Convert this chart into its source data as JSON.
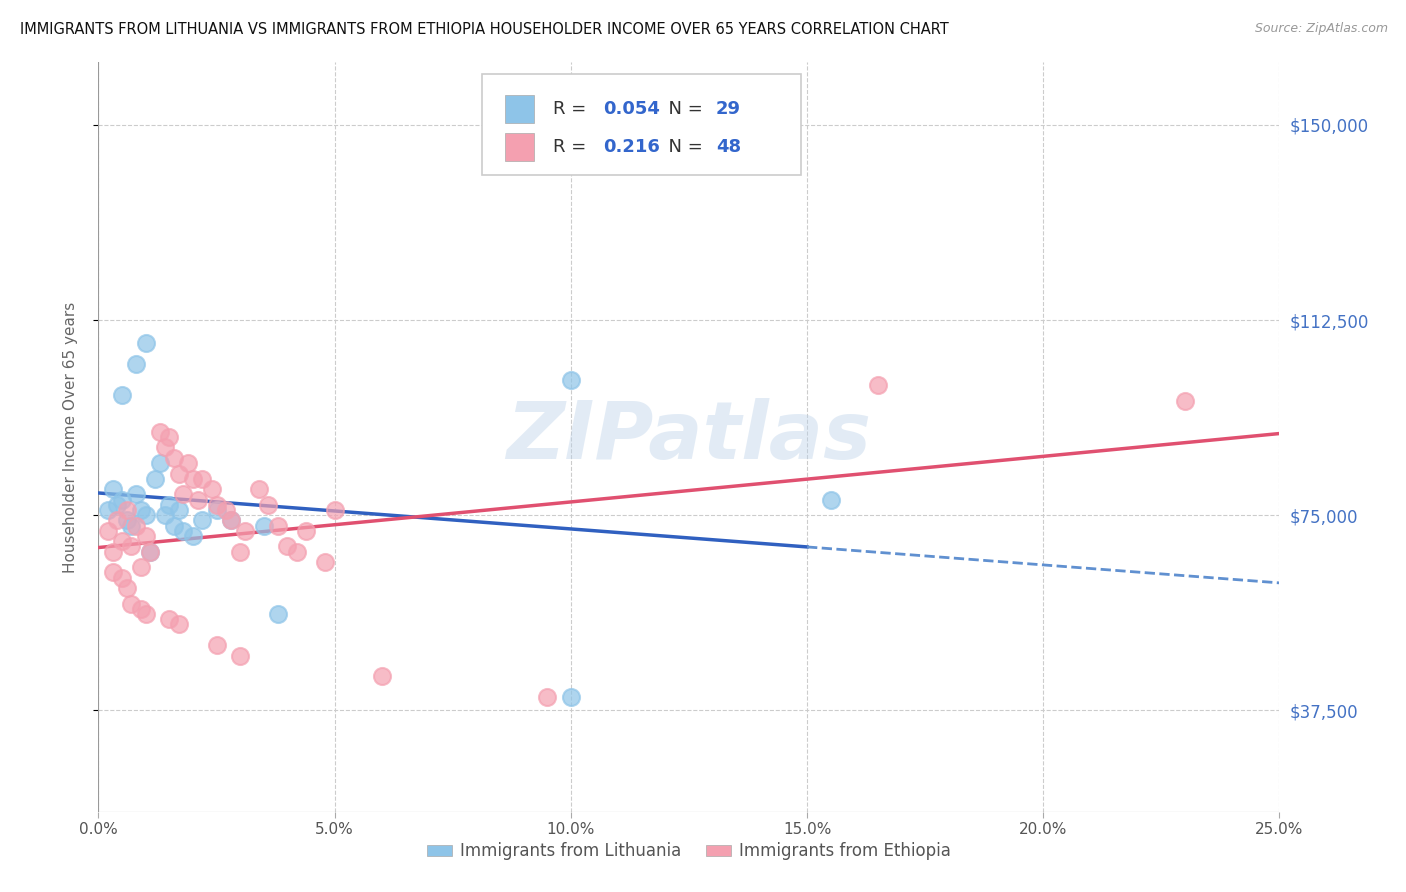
{
  "title": "IMMIGRANTS FROM LITHUANIA VS IMMIGRANTS FROM ETHIOPIA HOUSEHOLDER INCOME OVER 65 YEARS CORRELATION CHART",
  "source": "Source: ZipAtlas.com",
  "ylabel": "Householder Income Over 65 years",
  "yticks": [
    37500,
    75000,
    112500,
    150000
  ],
  "ytick_labels": [
    "$37,500",
    "$75,000",
    "$112,500",
    "$150,000"
  ],
  "xmin": 0.0,
  "xmax": 0.25,
  "ymin": 18000,
  "ymax": 162000,
  "R_lithuania": 0.054,
  "N_lithuania": 29,
  "R_ethiopia": 0.216,
  "N_ethiopia": 48,
  "color_lithuania": "#8ec4e8",
  "color_ethiopia": "#f4a0b0",
  "trend_lithuania_solid_color": "#3060c0",
  "trend_lithuania_dash_color": "#6090d0",
  "trend_ethiopia_color": "#e05070",
  "watermark": "ZIPatlas",
  "lith_trend_solid_end": 0.15,
  "lithuania_points": [
    [
      0.002,
      76000
    ],
    [
      0.003,
      80000
    ],
    [
      0.004,
      77000
    ],
    [
      0.005,
      78000
    ],
    [
      0.006,
      74000
    ],
    [
      0.007,
      73000
    ],
    [
      0.008,
      79000
    ],
    [
      0.009,
      76000
    ],
    [
      0.01,
      75000
    ],
    [
      0.011,
      68000
    ],
    [
      0.012,
      82000
    ],
    [
      0.013,
      85000
    ],
    [
      0.014,
      75000
    ],
    [
      0.015,
      77000
    ],
    [
      0.016,
      73000
    ],
    [
      0.017,
      76000
    ],
    [
      0.018,
      72000
    ],
    [
      0.02,
      71000
    ],
    [
      0.022,
      74000
    ],
    [
      0.008,
      104000
    ],
    [
      0.01,
      108000
    ],
    [
      0.005,
      98000
    ],
    [
      0.025,
      76000
    ],
    [
      0.028,
      74000
    ],
    [
      0.035,
      73000
    ],
    [
      0.038,
      56000
    ],
    [
      0.1,
      40000
    ],
    [
      0.155,
      78000
    ],
    [
      0.1,
      101000
    ]
  ],
  "ethiopia_points": [
    [
      0.002,
      72000
    ],
    [
      0.003,
      68000
    ],
    [
      0.004,
      74000
    ],
    [
      0.005,
      70000
    ],
    [
      0.006,
      76000
    ],
    [
      0.007,
      69000
    ],
    [
      0.008,
      73000
    ],
    [
      0.009,
      65000
    ],
    [
      0.01,
      71000
    ],
    [
      0.011,
      68000
    ],
    [
      0.013,
      91000
    ],
    [
      0.014,
      88000
    ],
    [
      0.015,
      90000
    ],
    [
      0.016,
      86000
    ],
    [
      0.017,
      83000
    ],
    [
      0.018,
      79000
    ],
    [
      0.019,
      85000
    ],
    [
      0.02,
      82000
    ],
    [
      0.021,
      78000
    ],
    [
      0.022,
      82000
    ],
    [
      0.024,
      80000
    ],
    [
      0.025,
      77000
    ],
    [
      0.027,
      76000
    ],
    [
      0.028,
      74000
    ],
    [
      0.03,
      68000
    ],
    [
      0.031,
      72000
    ],
    [
      0.034,
      80000
    ],
    [
      0.036,
      77000
    ],
    [
      0.038,
      73000
    ],
    [
      0.04,
      69000
    ],
    [
      0.042,
      68000
    ],
    [
      0.044,
      72000
    ],
    [
      0.048,
      66000
    ],
    [
      0.05,
      76000
    ],
    [
      0.003,
      64000
    ],
    [
      0.005,
      63000
    ],
    [
      0.006,
      61000
    ],
    [
      0.007,
      58000
    ],
    [
      0.009,
      57000
    ],
    [
      0.01,
      56000
    ],
    [
      0.015,
      55000
    ],
    [
      0.017,
      54000
    ],
    [
      0.025,
      50000
    ],
    [
      0.03,
      48000
    ],
    [
      0.06,
      44000
    ],
    [
      0.095,
      40000
    ],
    [
      0.165,
      100000
    ],
    [
      0.23,
      97000
    ]
  ]
}
